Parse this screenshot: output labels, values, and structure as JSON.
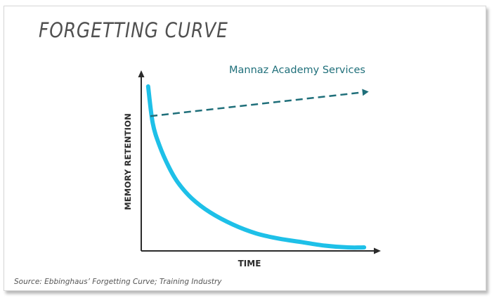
{
  "chart_data": {
    "type": "line",
    "title": "FORGETTING CURVE",
    "xlabel": "TIME",
    "ylabel": "MEMORY RETENTION",
    "annotation": "Mannaz Academy Services",
    "source": "Source: Ebbinghaus’ Forgetting Curve; Training Industry",
    "xlim": [
      0,
      1
    ],
    "ylim": [
      0,
      1
    ],
    "grid": false,
    "series": [
      {
        "color": "#1ec0e8",
        "style": "solid",
        "x": [
          0.03,
          0.05,
          0.08,
          0.12,
          0.16,
          0.22,
          0.3,
          0.4,
          0.5,
          0.6,
          0.7,
          0.8,
          0.9,
          0.97
        ],
        "y": [
          0.94,
          0.73,
          0.6,
          0.48,
          0.39,
          0.3,
          0.22,
          0.15,
          0.1,
          0.07,
          0.05,
          0.03,
          0.02,
          0.02
        ]
      },
      {
        "color": "#1f6f7a",
        "style": "dashed",
        "x": [
          0.04,
          0.99
        ],
        "y": [
          0.77,
          0.91
        ]
      }
    ]
  }
}
